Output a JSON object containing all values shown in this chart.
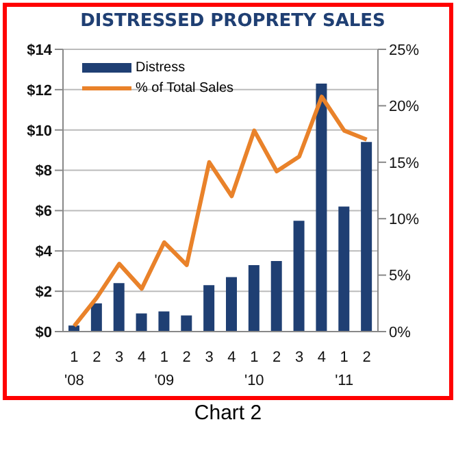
{
  "chart_data": {
    "type": "bar",
    "title": "DISTRESSED PROPRETY SALES",
    "categories": [
      "1\n'08",
      "2",
      "3",
      "4",
      "1\n'09",
      "2",
      "3",
      "4",
      "1\n'10",
      "2",
      "3",
      "4",
      "1\n'11",
      "2"
    ],
    "series": [
      {
        "name": "Distress",
        "color": "#1f3f73",
        "values": [
          0.3,
          1.4,
          2.4,
          0.9,
          1.0,
          0.8,
          2.3,
          2.7,
          3.3,
          3.5,
          5.5,
          12.3,
          6.2,
          9.4
        ]
      },
      {
        "name": "% of Total Sales",
        "type": "line",
        "axis": "y2",
        "color": "#e9822a",
        "values": [
          0.5,
          3,
          6,
          3.8,
          7.9,
          5.9,
          15,
          12,
          17.8,
          14.2,
          15.5,
          20.8,
          17.8,
          17
        ]
      }
    ],
    "ylim": [
      0,
      14
    ],
    "yticks": [
      {
        "value": 0,
        "label": "$0"
      },
      {
        "value": 2,
        "label": "$2"
      },
      {
        "value": 4,
        "label": "$4"
      },
      {
        "value": 6,
        "label": "$6"
      },
      {
        "value": 8,
        "label": "$8"
      },
      {
        "value": 10,
        "label": "$10"
      },
      {
        "value": 12,
        "label": "$12"
      },
      {
        "value": 14,
        "label": "$14"
      }
    ],
    "y2lim": [
      0,
      25
    ],
    "y2ticks": [
      {
        "value": 0,
        "label": "0%"
      },
      {
        "value": 5,
        "label": "5%"
      },
      {
        "value": 10,
        "label": "10%"
      },
      {
        "value": 15,
        "label": "15%"
      },
      {
        "value": 20,
        "label": "20%"
      },
      {
        "value": 25,
        "label": "25%"
      }
    ],
    "grid": "y",
    "legend": "top left",
    "marker": "none",
    "annotations": [
      "Chart 2"
    ]
  }
}
